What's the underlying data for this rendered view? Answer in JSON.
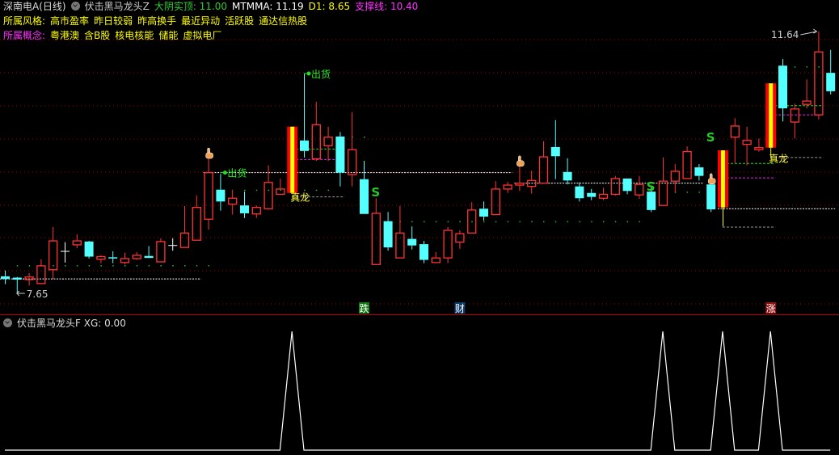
{
  "header": {
    "stock": "深南电A(日线)",
    "indicator": "伏击黑马龙头Z",
    "values": [
      {
        "label": "大阴实顶: 11.00",
        "color": "#33cc33"
      },
      {
        "label": "MTMMA: 11.19",
        "color": "#ffffff"
      },
      {
        "label": "D1: 8.65",
        "color": "#ffff00"
      },
      {
        "label": "支撑线: 10.40",
        "color": "#ff33ff"
      }
    ],
    "style_label": "所属风格:",
    "style_tags": [
      "高市盈率",
      "昨日较弱",
      "昨高换手",
      "最近异动",
      "活跃股",
      "通达信热股"
    ],
    "concept_label": "所属概念:",
    "concept_tags": [
      "粤港澳",
      "含B股",
      "核电核能",
      "储能",
      "虚拟电厂"
    ]
  },
  "sub_panel": {
    "indicator": "伏击黑马龙头F",
    "value": "XG: 0.00"
  },
  "colors": {
    "up": "#ff3232",
    "down": "#54ffff",
    "grid": "#aa0000",
    "support": "#ffffff",
    "highlight_outer": "#ff0000",
    "highlight_inner": "#ffff00"
  },
  "chart_data": {
    "type": "candlestick",
    "ylim": [
      7.65,
      11.64
    ],
    "max_label": "11.64",
    "min_label": "7.65",
    "max_slot": 68,
    "min_slot": 1,
    "candles_ohlc": [
      [
        7.91,
        8.0,
        7.79,
        7.87
      ],
      [
        7.89,
        7.9,
        7.65,
        7.86
      ],
      [
        7.86,
        7.96,
        7.77,
        7.9
      ],
      [
        7.8,
        8.17,
        7.8,
        8.07
      ],
      [
        8.01,
        8.66,
        7.87,
        8.45
      ],
      [
        8.29,
        8.43,
        8.12,
        8.29
      ],
      [
        8.39,
        8.55,
        8.34,
        8.45
      ],
      [
        8.44,
        8.45,
        8.18,
        8.21
      ],
      [
        8.17,
        8.23,
        8.11,
        8.21
      ],
      [
        8.2,
        8.29,
        8.11,
        8.19
      ],
      [
        8.12,
        8.27,
        8.09,
        8.18
      ],
      [
        8.18,
        8.28,
        8.16,
        8.23
      ],
      [
        8.22,
        8.37,
        8.19,
        8.19
      ],
      [
        8.13,
        8.49,
        8.13,
        8.44
      ],
      [
        8.38,
        8.49,
        8.3,
        8.38
      ],
      [
        8.35,
        8.98,
        8.35,
        8.57
      ],
      [
        8.46,
        9.14,
        8.46,
        8.96
      ],
      [
        8.78,
        9.84,
        8.62,
        9.49
      ],
      [
        9.23,
        9.47,
        8.91,
        9.05
      ],
      [
        9.01,
        9.23,
        8.85,
        9.1
      ],
      [
        8.99,
        9.2,
        8.8,
        8.87
      ],
      [
        8.86,
        8.99,
        8.8,
        8.96
      ],
      [
        8.94,
        9.6,
        8.93,
        9.34
      ],
      [
        9.16,
        9.4,
        9.16,
        9.24
      ],
      [
        9.18,
        10.19,
        9.18,
        10.19
      ],
      [
        9.98,
        11.0,
        9.72,
        9.82
      ],
      [
        9.7,
        10.57,
        9.67,
        10.22
      ],
      [
        9.9,
        10.19,
        9.67,
        10.03
      ],
      [
        10.04,
        10.11,
        9.28,
        9.49
      ],
      [
        9.46,
        10.41,
        9.28,
        9.84
      ],
      [
        9.39,
        9.67,
        8.86,
        8.86
      ],
      [
        8.09,
        9.1,
        8.09,
        8.87
      ],
      [
        8.75,
        8.89,
        8.3,
        8.35
      ],
      [
        8.19,
        8.98,
        8.19,
        8.57
      ],
      [
        8.48,
        8.67,
        8.32,
        8.38
      ],
      [
        8.4,
        8.45,
        8.11,
        8.16
      ],
      [
        8.12,
        8.28,
        8.12,
        8.19
      ],
      [
        8.19,
        8.66,
        8.11,
        8.61
      ],
      [
        8.43,
        8.61,
        8.33,
        8.56
      ],
      [
        8.57,
        9.04,
        8.57,
        8.92
      ],
      [
        8.94,
        9.05,
        8.76,
        8.82
      ],
      [
        8.85,
        9.36,
        8.85,
        9.24
      ],
      [
        9.24,
        9.35,
        9.18,
        9.3
      ],
      [
        9.3,
        9.74,
        9.21,
        9.33
      ],
      [
        9.28,
        9.52,
        9.17,
        9.37
      ],
      [
        9.33,
        9.97,
        9.33,
        9.73
      ],
      [
        9.88,
        10.29,
        9.39,
        9.74
      ],
      [
        9.5,
        9.71,
        9.31,
        9.37
      ],
      [
        9.28,
        9.34,
        9.05,
        9.1
      ],
      [
        9.18,
        9.24,
        9.07,
        9.12
      ],
      [
        9.1,
        9.26,
        9.07,
        9.16
      ],
      [
        9.16,
        9.44,
        9.14,
        9.4
      ],
      [
        9.4,
        9.4,
        9.16,
        9.21
      ],
      [
        9.15,
        9.44,
        9.09,
        9.31
      ],
      [
        9.2,
        9.29,
        8.89,
        8.92
      ],
      [
        8.99,
        9.72,
        8.99,
        9.36
      ],
      [
        9.36,
        9.62,
        9.19,
        9.51
      ],
      [
        9.4,
        9.89,
        9.4,
        9.81
      ],
      [
        9.57,
        9.62,
        9.37,
        9.44
      ],
      [
        9.31,
        9.34,
        8.89,
        8.93
      ],
      [
        8.96,
        9.83,
        8.67,
        9.83
      ],
      [
        10.03,
        10.32,
        9.63,
        10.2
      ],
      [
        9.92,
        10.19,
        9.6,
        9.98
      ],
      [
        9.84,
        10.01,
        9.81,
        9.87
      ],
      [
        9.87,
        10.85,
        9.72,
        10.85
      ],
      [
        11.12,
        11.22,
        10.27,
        10.47
      ],
      [
        10.26,
        10.54,
        10.01,
        10.46
      ],
      [
        10.53,
        10.91,
        10.47,
        10.58
      ],
      [
        10.37,
        11.64,
        10.3,
        11.33
      ],
      [
        11.01,
        11.36,
        10.68,
        10.73
      ]
    ],
    "highlight_slots": [
      24,
      60,
      64
    ],
    "support_lines": [
      {
        "from": 0,
        "to": 16,
        "price": 7.87
      },
      {
        "from": 17,
        "to": 42,
        "price": 9.49
      },
      {
        "from": 43,
        "to": 58,
        "price": 9.33
      },
      {
        "from": 60,
        "to": 69,
        "price": 8.94
      }
    ],
    "dot_rows": [
      {
        "from": 1,
        "to": 17,
        "price": 8.08
      },
      {
        "from": 20,
        "to": 27,
        "price": 9.23
      },
      {
        "from": 29,
        "to": 30,
        "price": 10.04
      },
      {
        "from": 33,
        "to": 53,
        "price": 8.75
      },
      {
        "from": 56,
        "to": 58,
        "price": 9.2
      },
      {
        "from": 66,
        "to": 68,
        "price": 11.11
      }
    ],
    "band_levels": [
      {
        "from": 24,
        "to": 28,
        "green": 9.85,
        "magenta": 9.69,
        "gray": 9.12
      },
      {
        "from": 60,
        "to": 64,
        "green": 9.63,
        "magenta": 9.41,
        "gray": 8.66
      },
      {
        "from": 64,
        "to": 68,
        "green": 10.51,
        "magenta": 10.37,
        "gray": 9.72
      }
    ],
    "signals": [
      {
        "slot": 18,
        "price": 9.49,
        "text": "出货",
        "kind": "sell"
      },
      {
        "slot": 25,
        "price": 11.0,
        "text": "出货",
        "kind": "sell"
      },
      {
        "slot": 31,
        "price": 9.2,
        "text": "S",
        "kind": "s"
      },
      {
        "slot": 54,
        "price": 9.29,
        "text": "S",
        "kind": "s"
      },
      {
        "slot": 59,
        "price": 10.04,
        "text": "S",
        "kind": "s"
      },
      {
        "slot": 24,
        "price": 9.12,
        "text": "真龙",
        "kind": "dragon"
      },
      {
        "slot": 64,
        "price": 9.71,
        "text": "真龙",
        "kind": "dragon"
      }
    ],
    "hand_icons": [
      {
        "slot": 17,
        "price": 9.78
      },
      {
        "slot": 43,
        "price": 9.66
      },
      {
        "slot": 59,
        "price": 9.39
      }
    ],
    "news_markers": [
      {
        "slot": 30,
        "text": "跌",
        "color": "#117711"
      },
      {
        "slot": 38,
        "text": "财",
        "color": "#0b3a6b"
      },
      {
        "slot": 64,
        "text": "涨",
        "color": "#8b0f0f"
      }
    ],
    "xg_series": {
      "name": "XG",
      "ones_at_slots": [
        24,
        55,
        60,
        64
      ],
      "ylim": [
        0,
        1
      ]
    }
  }
}
